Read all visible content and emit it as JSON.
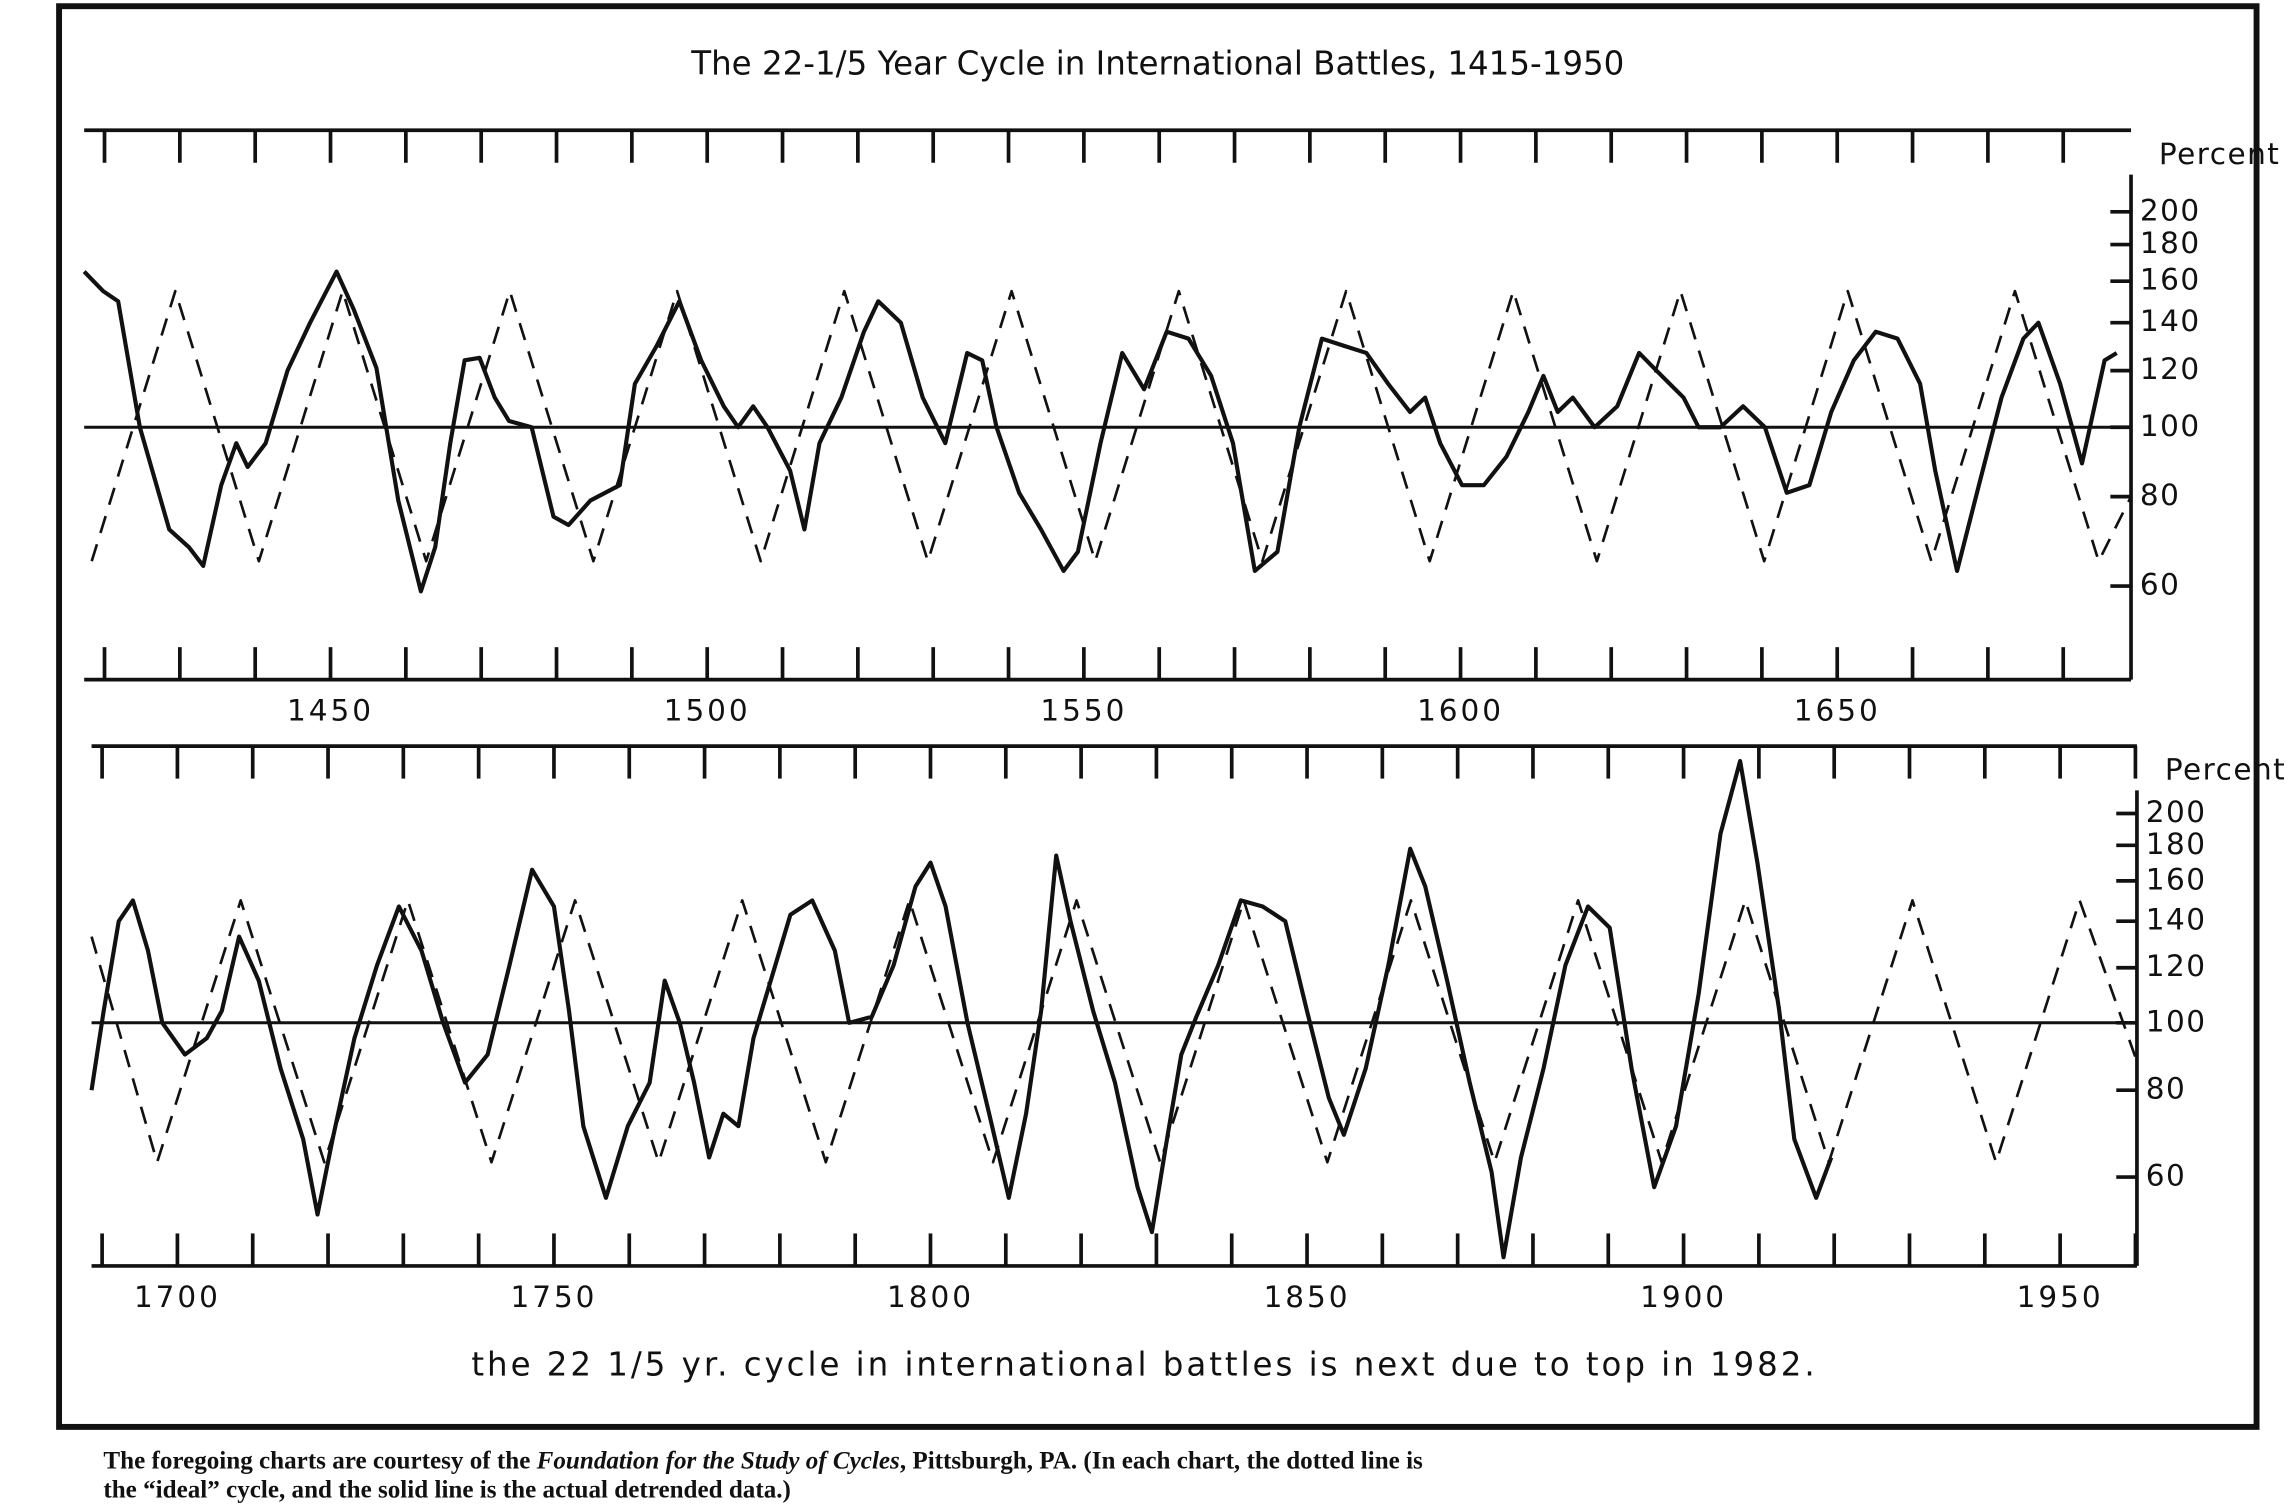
{
  "title": "The 22-1/5 Year Cycle in International Battles, 1415-1950",
  "chart_data": [
    {
      "type": "line",
      "ylabel": "Percent",
      "yscale": "log",
      "xlim": [
        1417.3,
        1689
      ],
      "ylim": [
        44.4,
        260
      ],
      "xticks": [
        1450,
        1500,
        1550,
        1600,
        1650
      ],
      "xminor_ticks": [
        1420,
        1430,
        1440,
        1460,
        1470,
        1480,
        1490,
        1510,
        1520,
        1530,
        1540,
        1560,
        1570,
        1580,
        1590,
        1610,
        1620,
        1630,
        1640,
        1660,
        1670,
        1680
      ],
      "yticks": [
        60,
        80,
        100,
        120,
        140,
        160,
        180,
        200
      ],
      "hline": 100,
      "series": [
        {
          "color": "#111111",
          "style": "solid",
          "x": [
            1417.3,
            1419.8,
            1421.8,
            1424.7,
            1428.6,
            1431.2,
            1433.1,
            1435.5,
            1437.5,
            1439,
            1441.4,
            1444.3,
            1447.3,
            1450.8,
            1453.1,
            1456.1,
            1459,
            1462,
            1463.9,
            1465.9,
            1467.8,
            1469.8,
            1471.8,
            1473.7,
            1476.7,
            1479.6,
            1481.6,
            1484.5,
            1488.4,
            1490.4,
            1493.3,
            1496.3,
            1499.2,
            1502.2,
            1504.1,
            1506.1,
            1508,
            1511,
            1512.9,
            1514.9,
            1517.8,
            1520.8,
            1522.7,
            1525.7,
            1528.6,
            1531.6,
            1534.5,
            1536.5,
            1538.4,
            1541.4,
            1544.3,
            1547.3,
            1549.2,
            1552.2,
            1555.1,
            1558,
            1561,
            1563.9,
            1566.9,
            1569.8,
            1572.7,
            1575.7,
            1578.6,
            1581.6,
            1584.5,
            1587.5,
            1590.4,
            1593.3,
            1595.3,
            1597.3,
            1600.2,
            1603.1,
            1606.1,
            1609,
            1611,
            1612.9,
            1614.9,
            1617.8,
            1620.8,
            1623.7,
            1626.7,
            1629.6,
            1631.6,
            1634.5,
            1637.5,
            1640.4,
            1643.3,
            1646.3,
            1649.2,
            1652.2,
            1655.1,
            1658,
            1661,
            1663,
            1665.9,
            1668.8,
            1671.8,
            1674.7,
            1676.7,
            1679.6,
            1682.5,
            1685.5,
            1687.1
          ],
          "values": [
            165,
            155,
            150,
            100,
            72,
            68,
            64,
            83,
            95,
            88,
            95,
            120,
            140,
            165,
            146,
            121,
            79,
            59,
            68,
            95,
            124,
            125,
            110,
            102,
            100,
            75,
            73,
            79,
            83,
            115,
            130,
            150,
            124,
            107,
            100,
            107,
            100,
            87,
            72,
            95,
            110,
            136,
            150,
            140,
            110,
            95,
            127,
            124,
            100,
            81,
            72,
            63,
            67,
            95,
            127,
            113,
            136,
            133,
            118,
            95,
            63,
            67,
            100,
            133,
            130,
            127,
            115,
            105,
            110,
            95,
            83,
            83,
            91,
            105,
            118,
            105,
            110,
            100,
            107,
            127,
            118,
            110,
            100,
            100,
            107,
            100,
            81,
            83,
            105,
            124,
            136,
            133,
            115,
            87,
            63,
            83,
            110,
            133,
            140,
            115,
            89,
            124,
            127
          ]
        },
        {
          "color": "#111111",
          "style": "dashed",
          "x": [
            1418.3,
            1429.4,
            1440.5,
            1451.6,
            1462.7,
            1473.8,
            1484.9,
            1496,
            1507.1,
            1518.2,
            1529.3,
            1540.4,
            1551.5,
            1562.6,
            1573.7,
            1584.8,
            1595.9,
            1607,
            1618.1,
            1629.2,
            1640.3,
            1651.4,
            1662.5,
            1673.6,
            1684.7,
            1689
          ],
          "values": [
            65,
            155,
            65,
            155,
            65,
            155,
            65,
            155,
            65,
            155,
            65,
            155,
            65,
            155,
            65,
            155,
            65,
            155,
            65,
            155,
            65,
            155,
            65,
            155,
            65,
            80
          ]
        }
      ]
    },
    {
      "type": "line",
      "ylabel": "Percent",
      "yscale": "log",
      "xlim": [
        1688.6,
        1960.2
      ],
      "ylim": [
        44.7,
        250
      ],
      "xticks": [
        1700,
        1750,
        1800,
        1850,
        1900,
        1950
      ],
      "xminor_ticks": [
        1690,
        1710,
        1720,
        1730,
        1740,
        1760,
        1770,
        1780,
        1790,
        1810,
        1820,
        1830,
        1840,
        1860,
        1870,
        1880,
        1890,
        1910,
        1920,
        1930,
        1940,
        1960
      ],
      "yticks": [
        60,
        80,
        100,
        120,
        140,
        160,
        180,
        200
      ],
      "hline": 100,
      "series": [
        {
          "color": "#111111",
          "style": "solid",
          "x": [
            1688.6,
            1690.2,
            1692.2,
            1694.1,
            1696.1,
            1698,
            1701,
            1703.9,
            1705.9,
            1708.2,
            1710.8,
            1713.7,
            1716.7,
            1718.6,
            1720.6,
            1723.5,
            1726.5,
            1729.4,
            1732.4,
            1735.3,
            1738.2,
            1741.2,
            1744.1,
            1747.1,
            1750,
            1752,
            1753.9,
            1756.9,
            1759.8,
            1762.7,
            1764.7,
            1766.7,
            1768.6,
            1770.6,
            1772.5,
            1774.5,
            1776.5,
            1779.4,
            1781.4,
            1784.3,
            1787.3,
            1789.2,
            1792.2,
            1795.1,
            1798,
            1800,
            1802,
            1804.9,
            1807.8,
            1810.4,
            1812.7,
            1814.7,
            1816.7,
            1818.6,
            1821.6,
            1824.5,
            1827.5,
            1829.4,
            1831.4,
            1833.3,
            1835.3,
            1838.2,
            1841.2,
            1844.1,
            1847.1,
            1850,
            1852.9,
            1854.9,
            1857.8,
            1860.8,
            1863.7,
            1865.7,
            1868.6,
            1871.6,
            1874.5,
            1876.1,
            1878.4,
            1881.4,
            1884.3,
            1887.3,
            1890.2,
            1893.1,
            1896.1,
            1899,
            1902,
            1904.9,
            1907.5,
            1909.8,
            1912.7,
            1914.7,
            1917.6,
            1919.6
          ],
          "values": [
            80,
            104,
            140,
            150,
            127,
            100,
            90,
            95,
            104,
            133,
            115,
            86,
            68,
            53,
            68,
            95,
            121,
            147,
            127,
            100,
            82,
            90,
            121,
            166,
            147,
            104,
            71,
            56,
            71,
            82,
            115,
            100,
            82,
            64,
            74,
            71,
            95,
            121,
            143,
            150,
            127,
            100,
            102,
            121,
            157,
            170,
            147,
            100,
            74,
            56,
            74,
            104,
            174,
            140,
            104,
            82,
            58,
            50,
            68,
            90,
            102,
            121,
            150,
            147,
            140,
            104,
            78,
            69,
            86,
            121,
            178,
            157,
            115,
            82,
            61,
            46,
            64,
            86,
            121,
            147,
            137,
            86,
            58,
            71,
            110,
            187,
            238,
            170,
            104,
            68,
            56,
            64
          ]
        },
        {
          "color": "#111111",
          "style": "dashed",
          "x": [
            1688.6,
            1697.3,
            1708.4,
            1719.5,
            1730.6,
            1741.7,
            1752.8,
            1763.9,
            1775,
            1786.1,
            1797.2,
            1808.3,
            1819.4,
            1830.5,
            1841.6,
            1852.7,
            1863.8,
            1874.9,
            1886,
            1897.1,
            1908.2,
            1919.3,
            1930.4,
            1941.5,
            1952.6,
            1960.2
          ],
          "values": [
            133,
            63,
            150,
            63,
            150,
            63,
            150,
            63,
            150,
            63,
            150,
            63,
            150,
            63,
            150,
            63,
            150,
            63,
            150,
            63,
            150,
            63,
            150,
            63,
            150,
            88
          ]
        }
      ]
    }
  ],
  "caption": "the 22 1/5 yr. cycle in international battles is next due to top in 1982.",
  "footnote": [
    "The foregoing charts are courtesy of the ",
    "Foundation for the Study of Cycles",
    ", Pittsburgh, PA. (In each chart, the dotted line is",
    "the “ideal” cycle, and the solid line is the actual detrended data.)"
  ]
}
